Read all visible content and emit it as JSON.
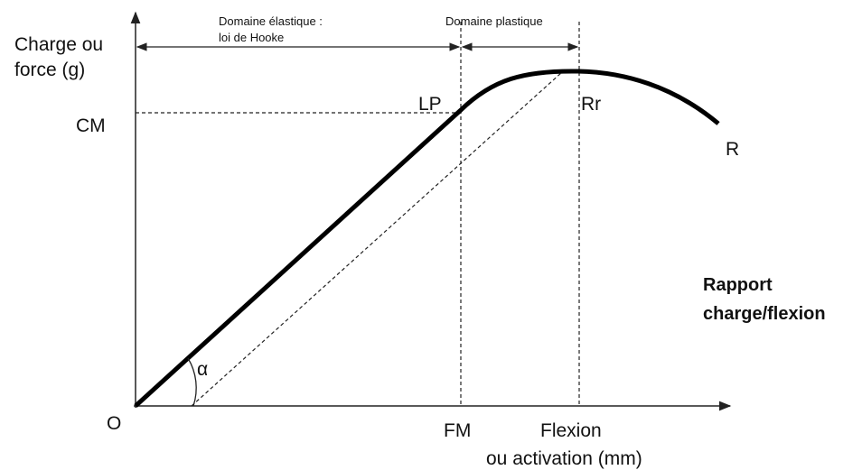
{
  "axes": {
    "y_label": [
      "Charge ou",
      "force (g)"
    ],
    "x_label": [
      "Flexion",
      "ou activation (mm)"
    ],
    "origin": "O"
  },
  "domains": {
    "elastic": [
      "Domaine élastique :",
      "loi de Hooke"
    ],
    "plastic": "Domaine plastique"
  },
  "points": {
    "cm": "CM",
    "lp": "LP",
    "rr": "Rr",
    "r": "R",
    "fm": "FM"
  },
  "angle": "α",
  "legend": [
    "Rapport",
    "charge/flexion"
  ]
}
